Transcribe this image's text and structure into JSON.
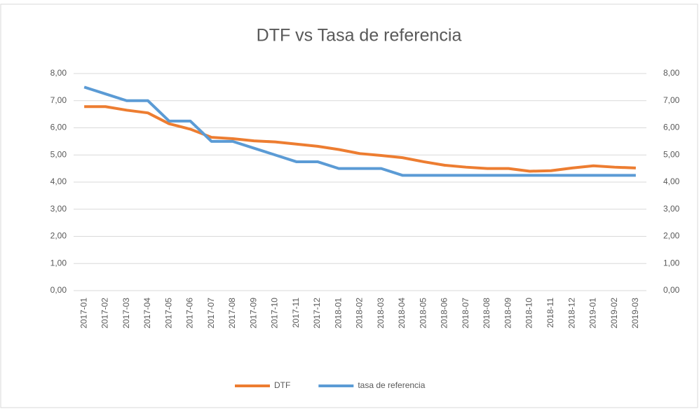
{
  "chart_data": {
    "type": "line",
    "title": "DTF vs Tasa de referencia",
    "categories": [
      "2017-01",
      "2017-02",
      "2017-03",
      "2017-04",
      "2017-05",
      "2017-06",
      "2017-07",
      "2017-08",
      "2017-09",
      "2017-10",
      "2017-11",
      "2017-12",
      "2018-01",
      "2018-02",
      "2018-03",
      "2018-04",
      "2018-05",
      "2018-06",
      "2018-07",
      "2018-08",
      "2018-09",
      "2018-10",
      "2018-11",
      "2018-12",
      "2019-01",
      "2019-02",
      "2019-03"
    ],
    "series": [
      {
        "name": "DTF",
        "color": "#ed7d31",
        "values": [
          6.78,
          6.78,
          6.65,
          6.55,
          6.15,
          5.95,
          5.65,
          5.6,
          5.52,
          5.48,
          5.4,
          5.32,
          5.2,
          5.05,
          4.98,
          4.9,
          4.75,
          4.62,
          4.55,
          4.5,
          4.5,
          4.4,
          4.42,
          4.52,
          4.6,
          4.55,
          4.52
        ]
      },
      {
        "name": "tasa de referencia",
        "color": "#5b9bd5",
        "axis": "y2",
        "values": [
          7.5,
          7.25,
          7.0,
          7.0,
          6.25,
          6.25,
          5.5,
          5.5,
          5.25,
          5.0,
          4.75,
          4.75,
          4.5,
          4.5,
          4.5,
          4.25,
          4.25,
          4.25,
          4.25,
          4.25,
          4.25,
          4.25,
          4.25,
          4.25,
          4.25,
          4.25,
          4.25
        ]
      }
    ],
    "ylim": [
      0,
      8
    ],
    "yticks": [
      {
        "value": 0,
        "label": "0,00"
      },
      {
        "value": 1,
        "label": "1,00"
      },
      {
        "value": 2,
        "label": "2,00"
      },
      {
        "value": 3,
        "label": "3,00"
      },
      {
        "value": 4,
        "label": "4,00"
      },
      {
        "value": 5,
        "label": "5,00"
      },
      {
        "value": 6,
        "label": "6,00"
      },
      {
        "value": 7,
        "label": "7,00"
      },
      {
        "value": 8,
        "label": "8,00"
      }
    ],
    "y2lim": [
      0,
      8
    ],
    "y2ticks": [
      {
        "value": 0,
        "label": "0,00"
      },
      {
        "value": 1,
        "label": "1,00"
      },
      {
        "value": 2,
        "label": "2,00"
      },
      {
        "value": 3,
        "label": "3,00"
      },
      {
        "value": 4,
        "label": "4,00"
      },
      {
        "value": 5,
        "label": "5,00"
      },
      {
        "value": 6,
        "label": "6,00"
      },
      {
        "value": 7,
        "label": "7,00"
      },
      {
        "value": 8,
        "label": "8,00"
      }
    ],
    "grid": true,
    "legend": "bottom"
  }
}
